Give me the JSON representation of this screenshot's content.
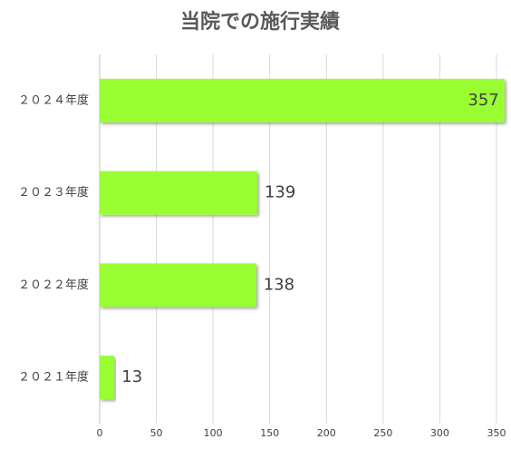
{
  "chart_data": {
    "type": "bar",
    "orientation": "horizontal",
    "title": "当院での施行実績",
    "categories": [
      "２０２４年度",
      "２０２３年度",
      "２０２２年度",
      "２０２１年度"
    ],
    "values": [
      357,
      139,
      138,
      13
    ],
    "color": "#99ff33",
    "xlim": [
      0,
      350
    ],
    "xticks": [
      0,
      50,
      100,
      150,
      200,
      250,
      300,
      350
    ],
    "grid": true
  }
}
